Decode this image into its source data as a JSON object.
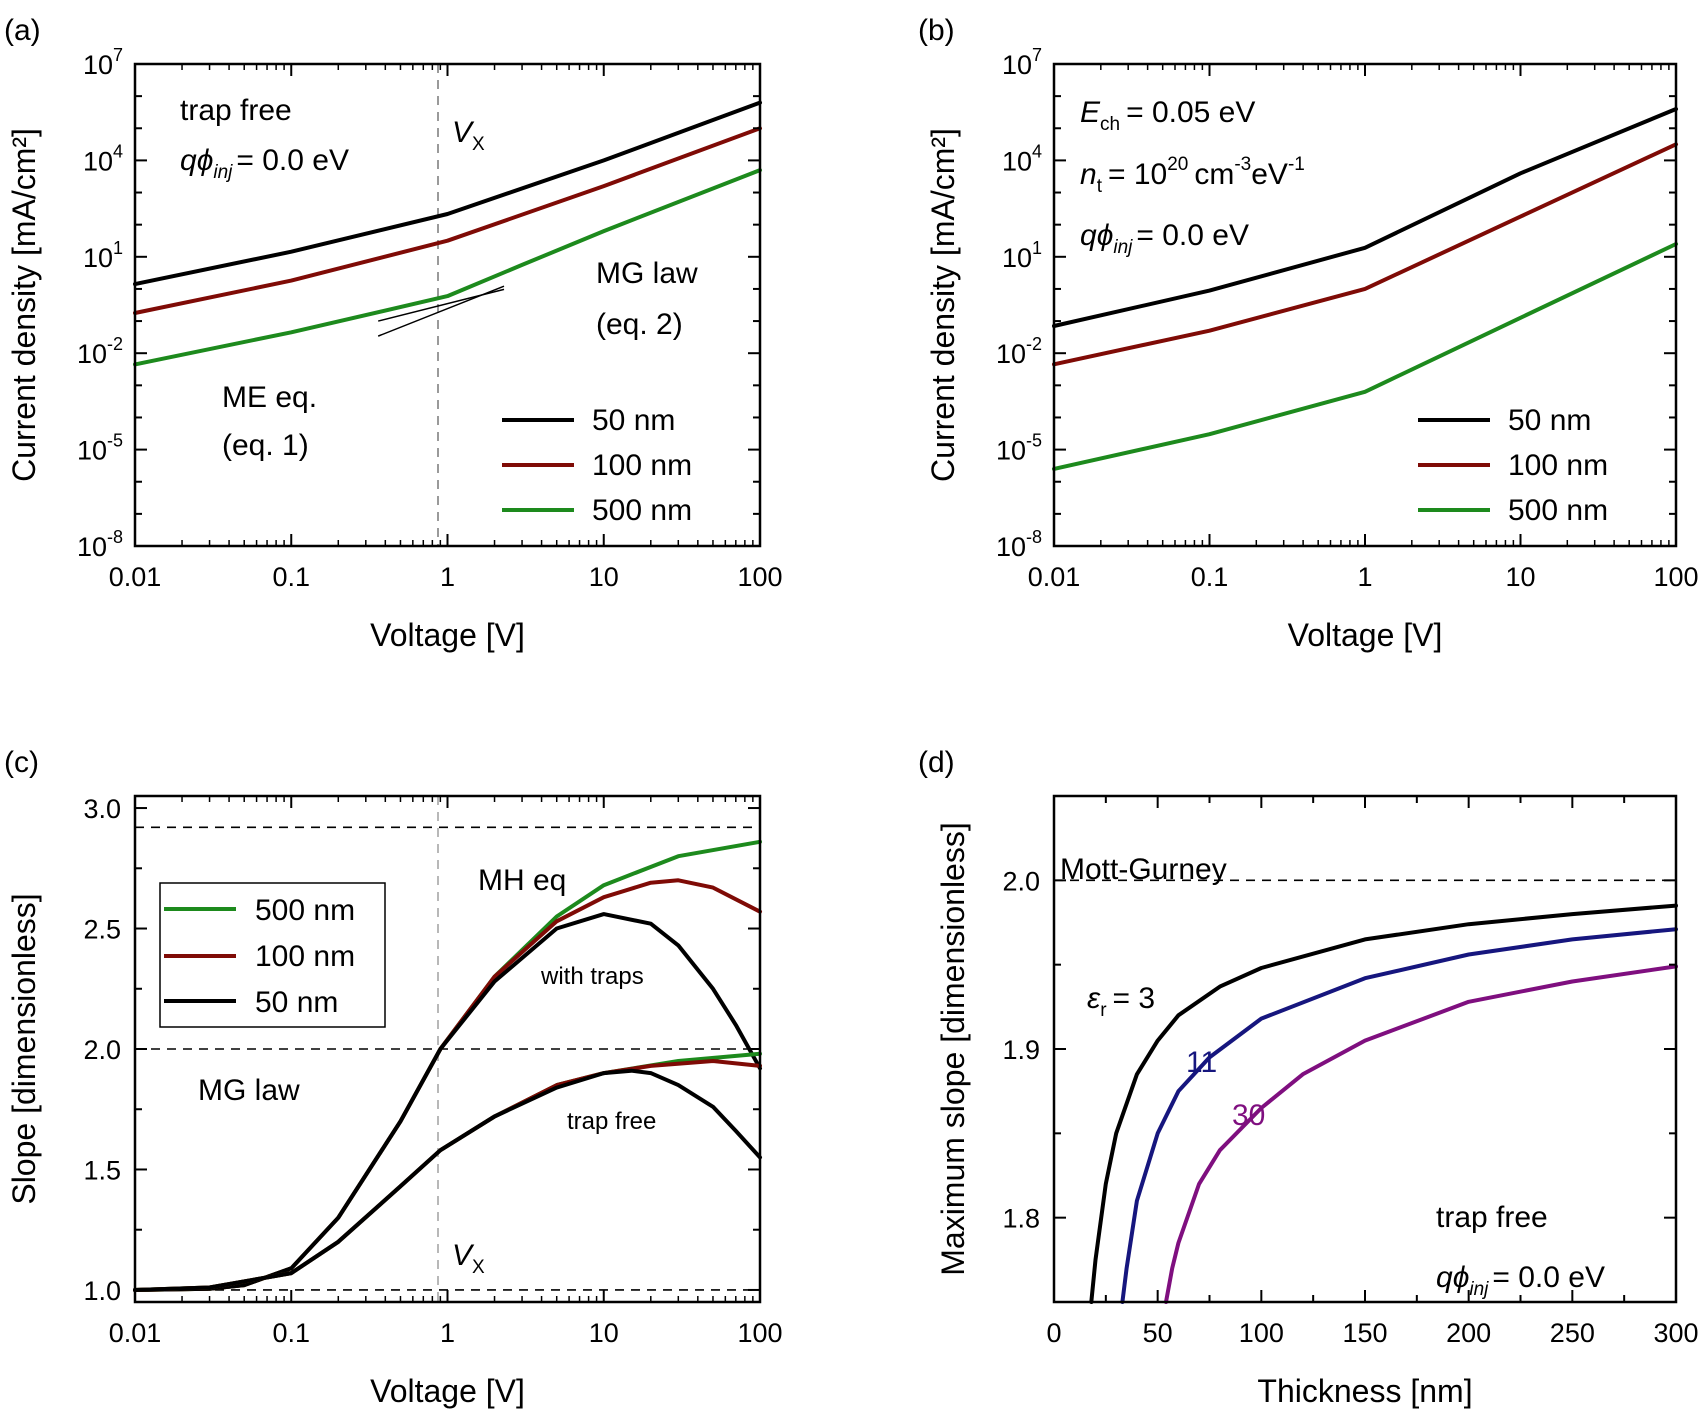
{
  "colors": {
    "black": "#000000",
    "red": "#7f0b06",
    "green": "#1d8a1d",
    "blue": "#16167e",
    "purple": "#7f0f7f",
    "gray": "#9a9a9a"
  },
  "chart_data": [
    {
      "panel": "(a)",
      "type": "line",
      "xscale": "log",
      "yscale": "log",
      "xlabel": "Voltage [V]",
      "ylabel": "Current density [mA/cm²]",
      "xlim": [
        0.01,
        100
      ],
      "ylim": [
        1e-08,
        10000000.0
      ],
      "xticks": [
        "0.01",
        "0.1",
        "1",
        "10",
        "100"
      ],
      "yticks_exp": [
        "7",
        "4",
        "1",
        "-2",
        "-5",
        "-8"
      ],
      "tick_base": "10",
      "series": [
        {
          "name": "50 nm",
          "color": "#000000",
          "x": [
            0.01,
            0.1,
            1,
            10,
            100
          ],
          "y": [
            1.41,
            14.4,
            214,
            10000,
            631000
          ]
        },
        {
          "name": "100 nm",
          "color": "#7f0b06",
          "x": [
            0.01,
            0.1,
            1,
            10,
            100
          ],
          "y": [
            0.178,
            1.82,
            31.6,
            1590,
            100000
          ]
        },
        {
          "name": "500 nm",
          "color": "#1d8a1d",
          "x": [
            0.01,
            0.1,
            1,
            3,
            10,
            100
          ],
          "y": [
            0.00447,
            0.0447,
            0.6,
            5.6,
            63,
            5000
          ]
        }
      ],
      "guides": {
        "vx": 0.9,
        "tangent_me": {
          "x": [
            0.36,
            2.3
          ],
          "y": [
            0.1,
            0.97
          ]
        },
        "tangent_mg": {
          "x": [
            0.36,
            2.3
          ],
          "y": [
            0.034,
            1.22
          ]
        }
      },
      "annotations": [
        "trap free",
        "= 0.0 eV",
        "MG law",
        "(eq. 2)",
        "ME eq.",
        "(eq. 1)"
      ],
      "legend_position": "bottom-right"
    },
    {
      "panel": "(b)",
      "type": "line",
      "xscale": "log",
      "yscale": "log",
      "xlabel": "Voltage [V]",
      "ylabel": "Current density [mA/cm²]",
      "xlim": [
        0.01,
        100
      ],
      "ylim": [
        1e-08,
        10000000.0
      ],
      "xticks": [
        "0.01",
        "0.1",
        "1",
        "10",
        "100"
      ],
      "yticks_exp": [
        "7",
        "4",
        "1",
        "-2",
        "-5",
        "-8"
      ],
      "tick_base": "10",
      "series": [
        {
          "name": "50 nm",
          "color": "#000000",
          "x": [
            0.01,
            0.1,
            1,
            10,
            100
          ],
          "y": [
            0.07,
            0.89,
            19,
            3980,
            398000
          ]
        },
        {
          "name": "100 nm",
          "color": "#7f0b06",
          "x": [
            0.01,
            0.1,
            1,
            10,
            100
          ],
          "y": [
            0.0045,
            0.05,
            1,
            178,
            31600
          ]
        },
        {
          "name": "500 nm",
          "color": "#1d8a1d",
          "x": [
            0.01,
            0.1,
            1,
            10,
            100
          ],
          "y": [
            2.5e-06,
            3.02e-05,
            0.00063,
            0.126,
            25
          ]
        }
      ],
      "annotations": [
        "= 0.05 eV",
        "= 10",
        "cm",
        "eV",
        "= 0.0 eV"
      ],
      "legend_position": "bottom-right"
    },
    {
      "panel": "(c)",
      "type": "line",
      "xscale": "log",
      "xlabel": "Voltage [V]",
      "ylabel": "Slope [dimensionless]",
      "xlim": [
        0.01,
        100
      ],
      "ylim": [
        0.95,
        3.05
      ],
      "xticks": [
        "0.01",
        "0.1",
        "1",
        "10",
        "100"
      ],
      "yticks": [
        "1.0",
        "1.5",
        "2.0",
        "2.5",
        "3.0"
      ],
      "series": [
        {
          "name": "500 nm",
          "color": "#1d8a1d",
          "group": "with traps",
          "x": [
            0.01,
            0.03,
            0.05,
            0.1,
            0.2,
            0.5,
            0.9,
            2,
            5,
            10,
            30,
            100
          ],
          "y": [
            1.0,
            1.005,
            1.02,
            1.09,
            1.3,
            1.7,
            2.0,
            2.3,
            2.55,
            2.68,
            2.8,
            2.86
          ]
        },
        {
          "name": "100 nm",
          "color": "#7f0b06",
          "group": "with traps",
          "x": [
            0.01,
            0.03,
            0.05,
            0.1,
            0.2,
            0.5,
            0.9,
            2,
            5,
            10,
            20,
            30,
            50,
            100
          ],
          "y": [
            1.0,
            1.005,
            1.02,
            1.09,
            1.3,
            1.7,
            2.0,
            2.3,
            2.53,
            2.63,
            2.69,
            2.7,
            2.67,
            2.57
          ]
        },
        {
          "name": "50 nm",
          "color": "#000000",
          "group": "with traps",
          "x": [
            0.01,
            0.03,
            0.05,
            0.1,
            0.2,
            0.5,
            0.9,
            2,
            5,
            10,
            20,
            30,
            50,
            70,
            100
          ],
          "y": [
            1.0,
            1.005,
            1.02,
            1.09,
            1.3,
            1.7,
            2.0,
            2.28,
            2.5,
            2.56,
            2.52,
            2.43,
            2.25,
            2.1,
            1.92
          ]
        },
        {
          "name": "500 nm",
          "color": "#1d8a1d",
          "group": "trap free",
          "x": [
            0.01,
            0.03,
            0.1,
            0.2,
            0.5,
            0.9,
            2,
            5,
            10,
            30,
            100
          ],
          "y": [
            1.0,
            1.01,
            1.07,
            1.2,
            1.43,
            1.58,
            1.72,
            1.85,
            1.9,
            1.95,
            1.98
          ]
        },
        {
          "name": "100 nm",
          "color": "#7f0b06",
          "group": "trap free",
          "x": [
            0.01,
            0.03,
            0.1,
            0.2,
            0.5,
            0.9,
            2,
            5,
            10,
            20,
            50,
            100
          ],
          "y": [
            1.0,
            1.01,
            1.07,
            1.2,
            1.43,
            1.58,
            1.72,
            1.85,
            1.9,
            1.93,
            1.95,
            1.93
          ]
        },
        {
          "name": "50 nm",
          "color": "#000000",
          "group": "trap free",
          "x": [
            0.01,
            0.03,
            0.1,
            0.2,
            0.5,
            0.9,
            2,
            5,
            10,
            15,
            20,
            30,
            50,
            70,
            100
          ],
          "y": [
            1.0,
            1.01,
            1.07,
            1.2,
            1.43,
            1.58,
            1.72,
            1.84,
            1.9,
            1.91,
            1.9,
            1.85,
            1.76,
            1.66,
            1.55
          ]
        }
      ],
      "hlines": [
        2.92,
        2.0,
        1.0
      ],
      "vx": 0.9,
      "annotations": [
        "MH eq",
        "with traps",
        "MG law",
        "trap free"
      ],
      "legend_position": "upper-left"
    },
    {
      "panel": "(d)",
      "type": "line",
      "xlabel": "Thickness [nm]",
      "ylabel": "Maximum slope [dimensionless]",
      "xlim": [
        0,
        300
      ],
      "ylim": [
        1.75,
        2.05
      ],
      "xticks": [
        "0",
        "50",
        "100",
        "150",
        "200",
        "250",
        "300"
      ],
      "yticks": [
        "1.8",
        "1.9",
        "2.0"
      ],
      "series": [
        {
          "name": "3",
          "color": "#000000",
          "x": [
            18,
            20,
            25,
            30,
            40,
            50,
            60,
            80,
            100,
            150,
            200,
            250,
            300
          ],
          "y": [
            1.75,
            1.775,
            1.82,
            1.85,
            1.885,
            1.905,
            1.92,
            1.937,
            1.948,
            1.965,
            1.974,
            1.98,
            1.985
          ]
        },
        {
          "name": "11",
          "color": "#16167e",
          "x": [
            33,
            35,
            40,
            50,
            60,
            75,
            100,
            150,
            200,
            250,
            300
          ],
          "y": [
            1.75,
            1.77,
            1.81,
            1.85,
            1.875,
            1.895,
            1.918,
            1.942,
            1.956,
            1.965,
            1.971
          ]
        },
        {
          "name": "30",
          "color": "#7f0f7f",
          "x": [
            54,
            57,
            60,
            70,
            80,
            100,
            120,
            150,
            200,
            250,
            300
          ],
          "y": [
            1.75,
            1.77,
            1.785,
            1.82,
            1.84,
            1.865,
            1.885,
            1.905,
            1.928,
            1.94,
            1.949
          ]
        }
      ],
      "hlines": [
        2.0
      ],
      "annotations": [
        "Mott-Gurney",
        "= 3",
        "11",
        "30",
        "trap free",
        "= 0.0 eV"
      ]
    }
  ]
}
